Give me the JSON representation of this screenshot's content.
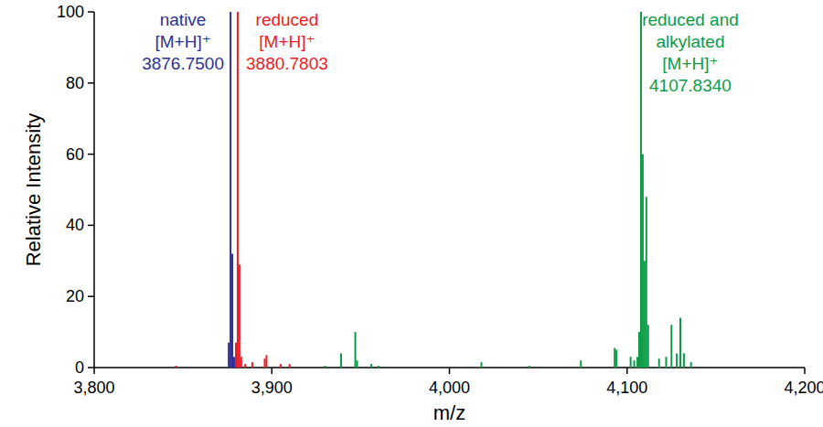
{
  "chart_data": {
    "type": "bar",
    "x_label": "m/z",
    "y_label": "Relative Intensity",
    "xlim": [
      3800,
      4200
    ],
    "ylim": [
      0,
      100
    ],
    "xticks": [
      {
        "value": 3800,
        "label": "3,800"
      },
      {
        "value": 3900,
        "label": "3,900"
      },
      {
        "value": 4000,
        "label": "4,000"
      },
      {
        "value": 4100,
        "label": "4,100"
      },
      {
        "value": 4200,
        "label": "4,200"
      }
    ],
    "yticks": [
      0,
      20,
      40,
      60,
      80,
      100
    ],
    "series": [
      {
        "color": "#2e3192",
        "annotation": [
          "native",
          "[M+H]⁺",
          "3876.7500"
        ],
        "x": [
          3875.75,
          3876.75,
          3877.75,
          3878.75
        ],
        "values": [
          7,
          100,
          32,
          3
        ]
      },
      {
        "color": "#ed1c24",
        "annotation": [
          "reduced",
          "[M+H]⁺",
          "3880.7803"
        ],
        "x": [
          3846,
          3879.78,
          3880.7803,
          3881.78,
          3882.78,
          3885,
          3889,
          3896,
          3897,
          3905,
          3910
        ],
        "values": [
          0.5,
          7,
          100,
          29,
          3,
          1,
          1.5,
          2.5,
          3.5,
          1,
          1
        ]
      },
      {
        "color": "#0d9b48",
        "annotation": [
          "reduced and",
          "alkylated",
          "[M+H]⁺",
          "4107.8340"
        ],
        "x": [
          3930,
          3939,
          3947,
          3948,
          3956,
          3960,
          4018,
          4045,
          4074,
          4093,
          4094,
          4102,
          4104,
          4105.83,
          4106.83,
          4107.834,
          4108.83,
          4109.83,
          4110.83,
          4111.83,
          4118,
          4122,
          4125,
          4128,
          4130,
          4132,
          4136
        ],
        "values": [
          0.5,
          4,
          10,
          2,
          1,
          0.5,
          1.5,
          0.5,
          2,
          5.5,
          5,
          3,
          2,
          3,
          10,
          100,
          60,
          30,
          48,
          12,
          2.5,
          3,
          12,
          4,
          14,
          4,
          1.5
        ]
      }
    ]
  }
}
